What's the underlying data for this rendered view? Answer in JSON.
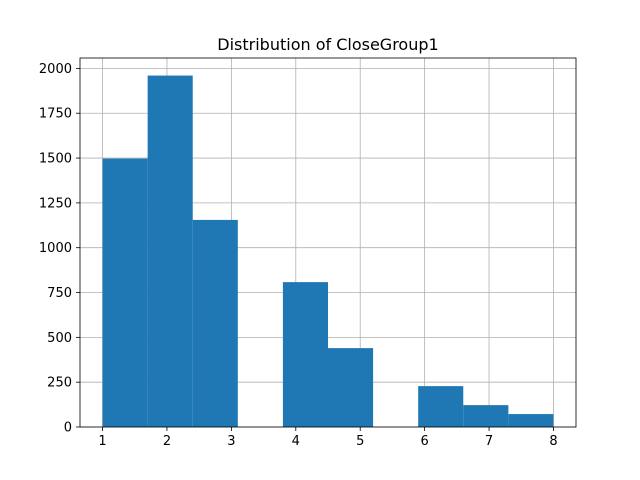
{
  "chart_data": {
    "type": "bar",
    "title": "Distribution of CloseGroup1",
    "xlabel": "",
    "ylabel": "",
    "xlim": [
      0.65,
      8.35
    ],
    "ylim": [
      0,
      2058
    ],
    "xticks": [
      1,
      2,
      3,
      4,
      5,
      6,
      7,
      8
    ],
    "yticks": [
      0,
      250,
      500,
      750,
      1000,
      1250,
      1500,
      1750,
      2000
    ],
    "ytick_labels": [
      "0",
      "250",
      "500",
      "750",
      "1000",
      "1250",
      "1500",
      "1750",
      "2000"
    ],
    "grid": true,
    "bar_color": "#1f77b4",
    "bins": [
      {
        "x0": 1.0,
        "x1": 1.7,
        "value": 1497
      },
      {
        "x0": 1.7,
        "x1": 2.4,
        "value": 1960
      },
      {
        "x0": 2.4,
        "x1": 3.1,
        "value": 1155
      },
      {
        "x0": 3.1,
        "x1": 3.8,
        "value": 0
      },
      {
        "x0": 3.8,
        "x1": 4.5,
        "value": 808
      },
      {
        "x0": 4.5,
        "x1": 5.2,
        "value": 440
      },
      {
        "x0": 5.2,
        "x1": 5.9,
        "value": 0
      },
      {
        "x0": 5.9,
        "x1": 6.6,
        "value": 228
      },
      {
        "x0": 6.6,
        "x1": 7.3,
        "value": 122
      },
      {
        "x0": 7.3,
        "x1": 8.0,
        "value": 72
      }
    ]
  }
}
